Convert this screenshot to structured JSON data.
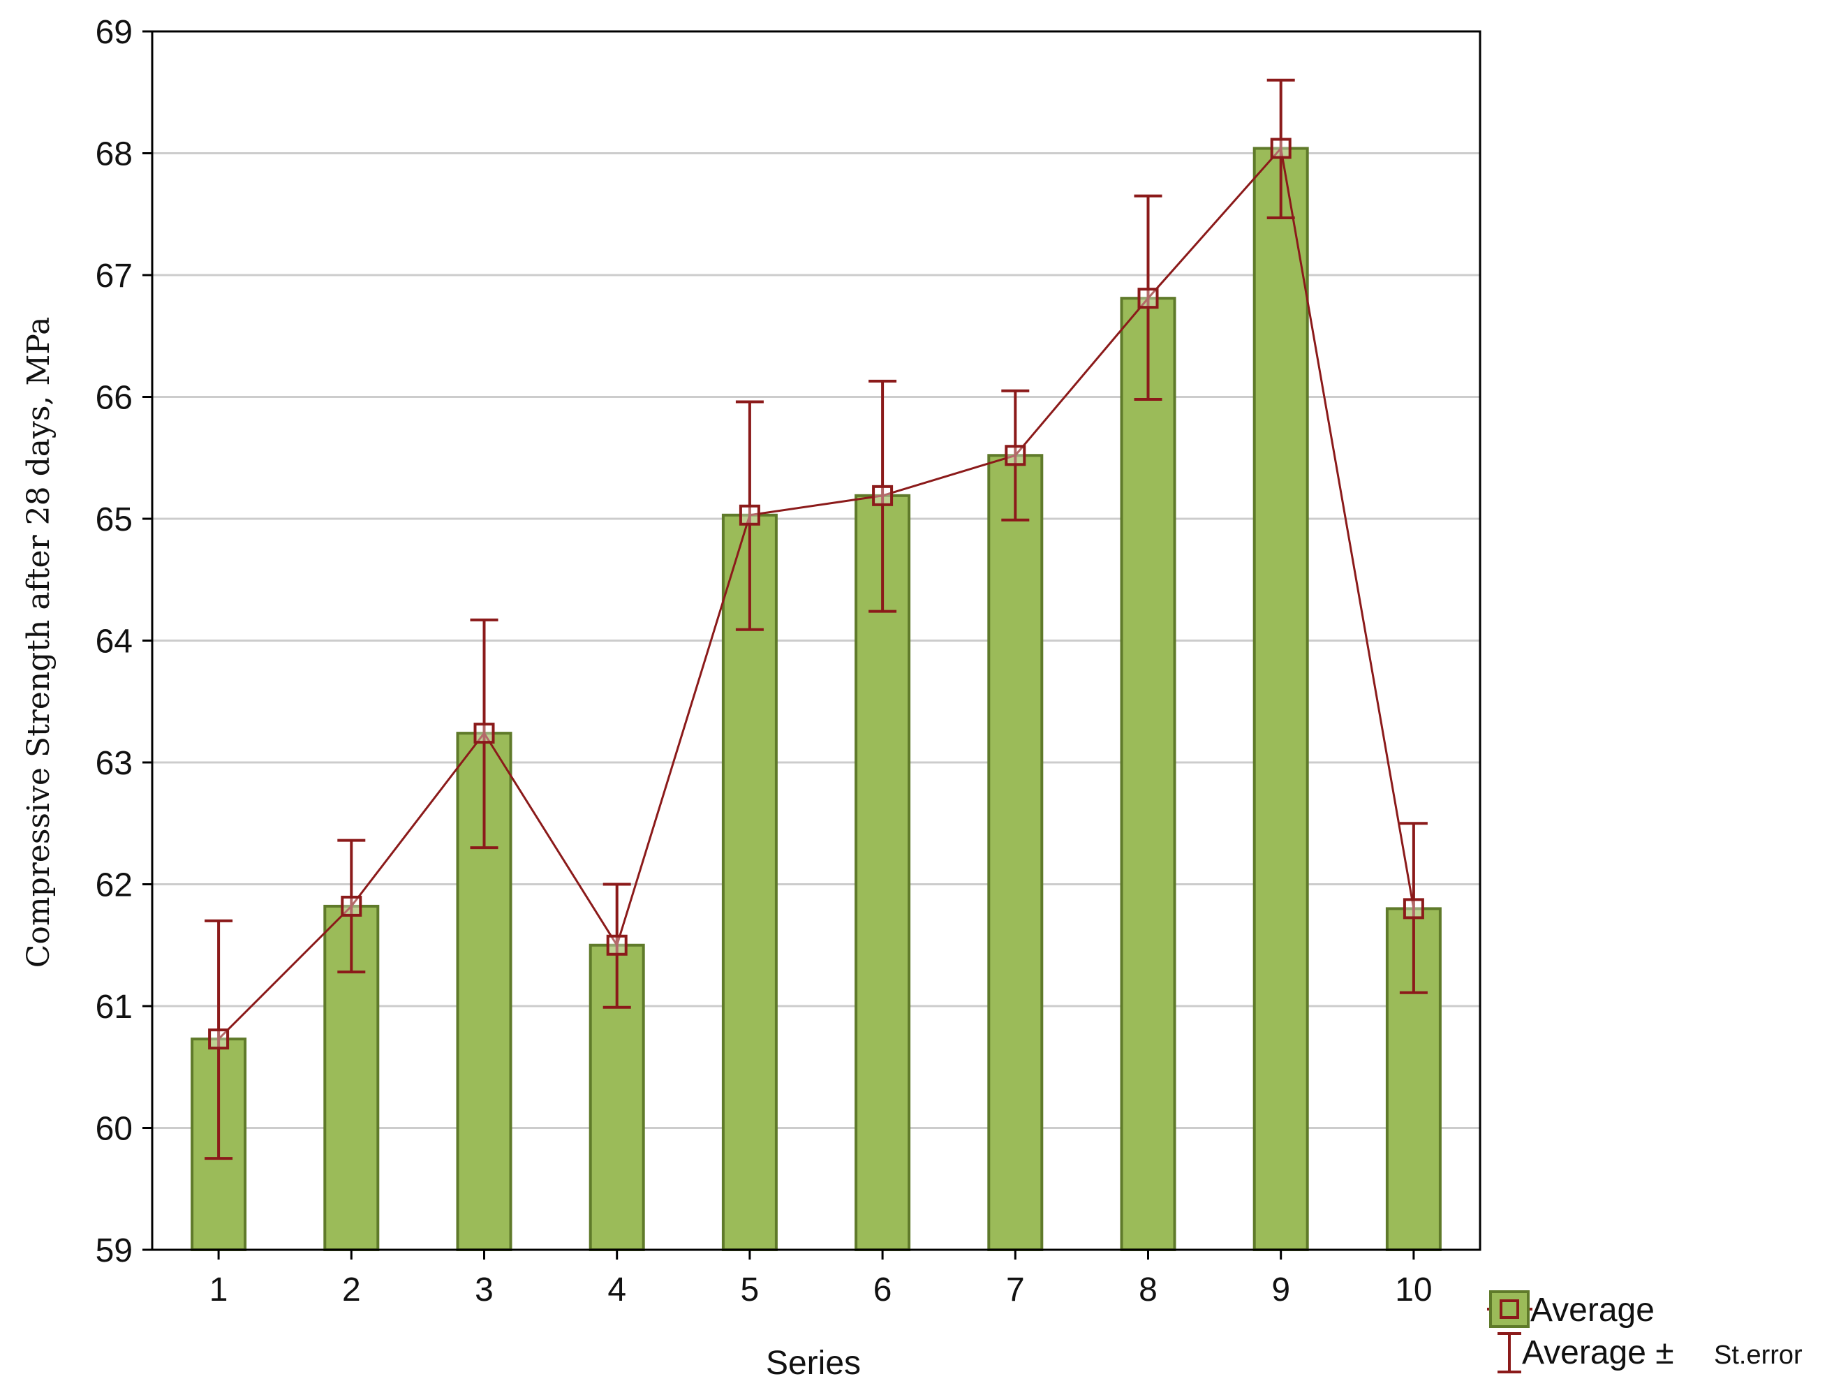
{
  "chart_data": {
    "type": "bar",
    "categories": [
      "1",
      "2",
      "3",
      "4",
      "5",
      "6",
      "7",
      "8",
      "9",
      "10"
    ],
    "series": [
      {
        "name": "Average",
        "values": [
          60.73,
          61.82,
          63.24,
          61.5,
          65.03,
          65.19,
          65.52,
          66.81,
          68.04,
          61.8
        ],
        "error_low": [
          59.75,
          61.28,
          62.3,
          60.99,
          64.09,
          64.24,
          64.99,
          65.98,
          67.47,
          61.11
        ],
        "error_high": [
          61.7,
          62.36,
          64.17,
          62.0,
          65.96,
          66.13,
          66.05,
          67.65,
          68.6,
          62.5
        ]
      }
    ],
    "xlabel": "Series",
    "ylabel": "Compressive Strength after 28 days, MPa",
    "ylim": [
      59,
      69
    ],
    "yticks": [
      59,
      60,
      61,
      62,
      63,
      64,
      65,
      66,
      67,
      68,
      69
    ],
    "grid": true,
    "legend": {
      "placement": "bottom-right",
      "entries": [
        {
          "label": "Average",
          "marker": "square-line-bar"
        },
        {
          "label": "Average ±",
          "label_suffix": "St.error",
          "marker": "error-bar"
        }
      ]
    },
    "colors": {
      "bar_fill": "#9bbb59",
      "bar_stroke": "#5f7a2a",
      "line": "#8b1a1a",
      "grid": "#cccccc",
      "axis": "#000000"
    }
  }
}
